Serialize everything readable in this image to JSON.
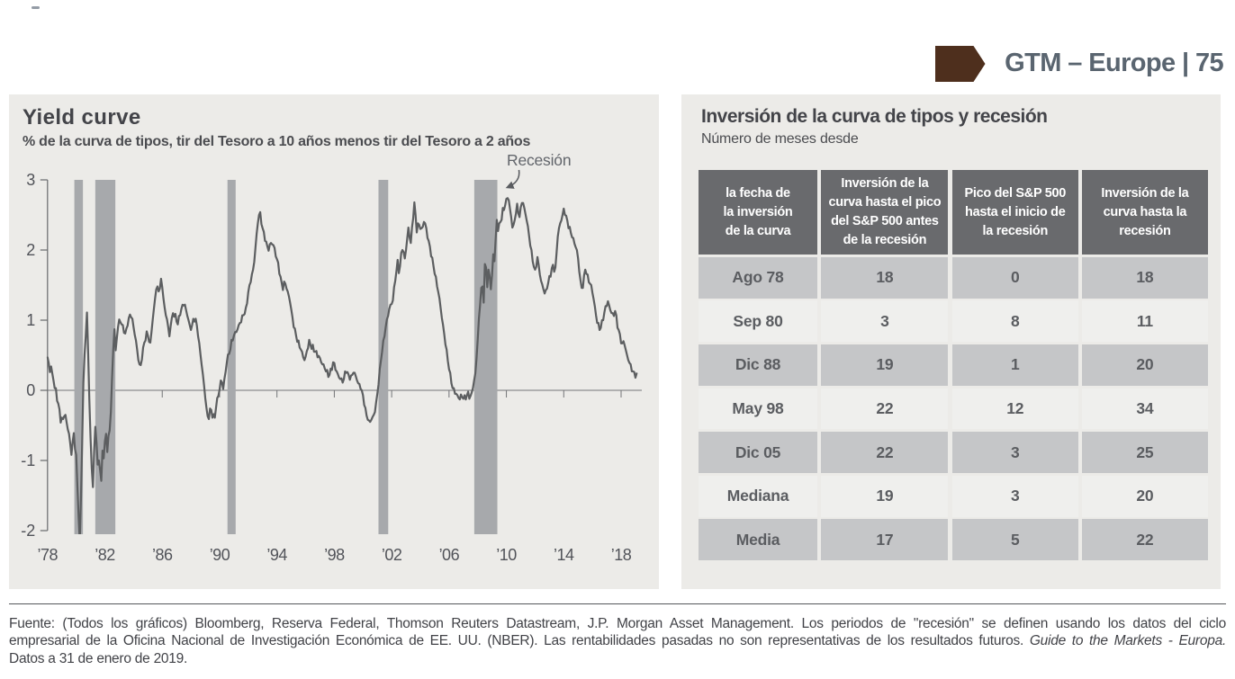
{
  "header": {
    "slide_label": "GTM – Europe | 75",
    "arrow_color": "#4e2f1d",
    "label_color": "#5a6570"
  },
  "left_panel": {
    "title": "Yield curve",
    "subtitle": "% de la curva de tipos, tir del Tesoro a 10 años menos tir del Tesoro a 2 años",
    "annotation": "Recesión"
  },
  "chart_data": {
    "type": "line",
    "title": "Yield curve",
    "subtitle": "% de la curva de tipos, tir del Tesoro a 10 años menos tir del Tesoro a 2 años",
    "x_start_year": 1978,
    "points_per_year": 12,
    "ylim": [
      -2,
      3
    ],
    "yticks": [
      3,
      2,
      1,
      0,
      -1,
      -2
    ],
    "xtick_years": [
      1978,
      1982,
      1986,
      1990,
      1994,
      1998,
      2002,
      2006,
      2010,
      2014,
      2018
    ],
    "xtick_labels": [
      "’78",
      "’82",
      "’86",
      "’90",
      "’94",
      "’98",
      "’02",
      "’06",
      "’10",
      "’14",
      "’18"
    ],
    "annotation": "Recesión",
    "recession_bands_years": [
      [
        1979.87,
        1980.47
      ],
      [
        1981.33,
        1982.73
      ],
      [
        1990.55,
        1991.12
      ],
      [
        2001.08,
        2001.76
      ],
      [
        2007.76,
        2009.37
      ]
    ],
    "line_color": "#5c5e60",
    "band_color": "#a7a9ac",
    "values": [
      0.47,
      0.39,
      0.26,
      0.34,
      0.24,
      0.14,
      0.03,
      0.03,
      -0.15,
      -0.19,
      -0.27,
      -0.46,
      -0.39,
      -0.41,
      -0.37,
      -0.35,
      -0.46,
      -0.56,
      -0.62,
      -0.76,
      -0.92,
      -0.74,
      -0.61,
      -0.84,
      -0.92,
      -1.37,
      -1.8,
      -2.16,
      -1.52,
      -0.74,
      0.11,
      0.51,
      0.78,
      1.11,
      0.53,
      -0.14,
      -0.68,
      -1.11,
      -1.38,
      -0.87,
      -0.52,
      -0.75,
      -1.06,
      -1.0,
      -1.14,
      -1.29,
      -0.86,
      -0.97,
      -0.73,
      -0.62,
      -0.88,
      -0.65,
      -0.57,
      -0.31,
      0.17,
      0.58,
      0.87,
      0.57,
      0.74,
      0.9,
      1.01,
      0.97,
      0.94,
      0.93,
      0.82,
      0.81,
      0.88,
      0.92,
      1.03,
      1.08,
      1.04,
      1.02,
      0.9,
      0.79,
      0.71,
      0.58,
      0.43,
      0.37,
      0.36,
      0.44,
      0.61,
      0.68,
      0.71,
      0.84,
      0.78,
      0.69,
      0.68,
      0.83,
      1.0,
      1.16,
      1.31,
      1.44,
      1.48,
      1.41,
      1.45,
      1.59,
      1.47,
      1.31,
      1.18,
      1.07,
      1.01,
      0.9,
      0.77,
      0.91,
      1.03,
      1.1,
      1.05,
      1.09,
      0.98,
      0.94,
      1.06,
      1.07,
      1.16,
      1.22,
      1.21,
      1.22,
      1.14,
      1.06,
      1.0,
      0.93,
      0.86,
      0.93,
      1.02,
      0.98,
      1.02,
      0.92,
      0.77,
      0.67,
      0.51,
      0.36,
      0.23,
      0.07,
      -0.11,
      -0.25,
      -0.37,
      -0.41,
      -0.26,
      -0.28,
      -0.39,
      -0.34,
      -0.39,
      -0.25,
      -0.11,
      -0.08,
      0.01,
      0.14,
      0.11,
      0.02,
      0.16,
      0.26,
      0.39,
      0.51,
      0.52,
      0.58,
      0.72,
      0.71,
      0.78,
      0.83,
      0.83,
      0.87,
      0.93,
      0.96,
      0.97,
      1.07,
      1.07,
      1.09,
      1.18,
      1.24,
      1.4,
      1.5,
      1.54,
      1.65,
      1.72,
      1.83,
      2.03,
      2.23,
      2.38,
      2.5,
      2.54,
      2.37,
      2.31,
      2.26,
      2.13,
      2.12,
      2.05,
      1.99,
      2.08,
      2.1,
      2.08,
      2.07,
      2.03,
      1.91,
      1.87,
      1.82,
      1.66,
      1.62,
      1.53,
      1.43,
      1.55,
      1.52,
      1.45,
      1.41,
      1.34,
      1.25,
      1.15,
      1.04,
      0.9,
      0.88,
      0.78,
      0.69,
      0.71,
      0.61,
      0.58,
      0.55,
      0.47,
      0.43,
      0.48,
      0.56,
      0.6,
      0.72,
      0.65,
      0.59,
      0.65,
      0.55,
      0.55,
      0.56,
      0.47,
      0.49,
      0.46,
      0.4,
      0.37,
      0.37,
      0.31,
      0.27,
      0.29,
      0.19,
      0.22,
      0.31,
      0.29,
      0.4,
      0.39,
      0.29,
      0.27,
      0.23,
      0.18,
      0.16,
      0.17,
      0.11,
      0.16,
      0.27,
      0.25,
      0.26,
      0.22,
      0.15,
      0.21,
      0.22,
      0.25,
      0.25,
      0.2,
      0.14,
      0.1,
      0.09,
      0.02,
      0.0,
      -0.07,
      -0.21,
      -0.25,
      -0.36,
      -0.42,
      -0.43,
      -0.45,
      -0.42,
      -0.38,
      -0.35,
      -0.31,
      -0.17,
      -0.05,
      0.08,
      0.3,
      0.42,
      0.55,
      0.71,
      0.77,
      0.9,
      1.01,
      1.06,
      1.16,
      1.22,
      1.23,
      1.28,
      1.47,
      1.56,
      1.7,
      1.86,
      1.67,
      1.77,
      1.96,
      2.0,
      1.97,
      1.88,
      2.0,
      2.16,
      2.32,
      2.18,
      2.1,
      2.32,
      2.45,
      2.68,
      2.5,
      2.25,
      2.38,
      2.36,
      2.3,
      2.31,
      2.33,
      2.4,
      2.38,
      2.31,
      2.17,
      2.13,
      2.05,
      1.91,
      1.89,
      1.77,
      1.66,
      1.62,
      1.48,
      1.4,
      1.31,
      1.17,
      1.03,
      0.93,
      0.8,
      0.65,
      0.58,
      0.42,
      0.3,
      0.25,
      0.1,
      0.03,
      0.03,
      -0.05,
      -0.05,
      -0.07,
      -0.11,
      -0.13,
      -0.06,
      -0.1,
      -0.12,
      -0.07,
      -0.13,
      -0.07,
      -0.02,
      -0.12,
      -0.08,
      -0.03,
      0.03,
      0.14,
      0.24,
      0.45,
      0.72,
      1.02,
      1.22,
      1.46,
      1.48,
      1.25,
      1.8,
      1.75,
      1.47,
      1.72,
      1.63,
      1.44,
      1.64,
      1.94,
      1.84,
      2.15,
      2.43,
      2.27,
      2.38,
      2.4,
      2.43,
      2.6,
      2.57,
      2.64,
      2.73,
      2.74,
      2.71,
      2.59,
      2.47,
      2.32,
      2.36,
      2.43,
      2.52,
      2.66,
      2.52,
      2.47,
      2.61,
      2.67,
      2.67,
      2.6,
      2.51,
      2.42,
      2.34,
      2.2,
      2.06,
      2.0,
      1.84,
      1.76,
      1.72,
      1.76,
      1.9,
      1.79,
      1.65,
      1.56,
      1.51,
      1.44,
      1.38,
      1.43,
      1.45,
      1.53,
      1.63,
      1.62,
      1.74,
      1.79,
      1.69,
      1.75,
      1.96,
      2.19,
      2.31,
      2.38,
      2.42,
      2.5,
      2.59,
      2.5,
      2.49,
      2.42,
      2.31,
      2.33,
      2.24,
      2.18,
      2.17,
      2.09,
      2.04,
      2.0,
      1.88,
      1.69,
      1.57,
      1.46,
      1.46,
      1.64,
      1.72,
      1.66,
      1.65,
      1.54,
      1.52,
      1.5,
      1.39,
      1.3,
      1.2,
      1.07,
      0.96,
      0.96,
      0.86,
      0.89,
      1.0,
      1.0,
      1.11,
      1.2,
      1.2,
      1.27,
      1.21,
      1.14,
      1.1,
      1.1,
      1.06,
      1.13,
      1.07,
      0.89,
      0.86,
      0.8,
      0.67,
      0.67,
      0.7,
      0.64,
      0.57,
      0.5,
      0.43,
      0.39,
      0.37,
      0.27,
      0.27,
      0.26,
      0.18,
      0.24
    ]
  },
  "right_panel": {
    "title": "Inversión de la curva de tipos y recesión",
    "subtitle": "Número de meses desde",
    "table": {
      "headers": [
        "la fecha de\nla inversión\nde la curva",
        "Inversión de la\ncurva hasta el pico\ndel S&P 500 antes\nde la recesión",
        "Pico del S&P 500\nhasta el inicio de\nla recesión",
        "Inversión de la\ncurva hasta la\nrecesión"
      ],
      "rows": [
        [
          "Ago 78",
          "18",
          "0",
          "18"
        ],
        [
          "Sep 80",
          "3",
          "8",
          "11"
        ],
        [
          "Dic 88",
          "19",
          "1",
          "20"
        ],
        [
          "May 98",
          "22",
          "12",
          "34"
        ],
        [
          "Dic 05",
          "22",
          "3",
          "25"
        ],
        [
          "Mediana",
          "19",
          "3",
          "20"
        ],
        [
          "Media",
          "17",
          "5",
          "22"
        ]
      ]
    }
  },
  "footer": {
    "line1": "Fuente: (Todos los gráficos) Bloomberg, Reserva Federal, Thomson Reuters Datastream, J.P. Morgan Asset Management. Los periodos de \"recesión\" se definen usando los datos del ciclo",
    "line2": "empresarial de la Oficina Nacional de Investigación Económica de EE. UU. (NBER). Las rentabilidades pasadas no son representativas de los resultados futuros. ",
    "line2_italic": "Guide to the Markets - Europa.",
    "line3": "Datos a 31 de enero de 2019."
  }
}
